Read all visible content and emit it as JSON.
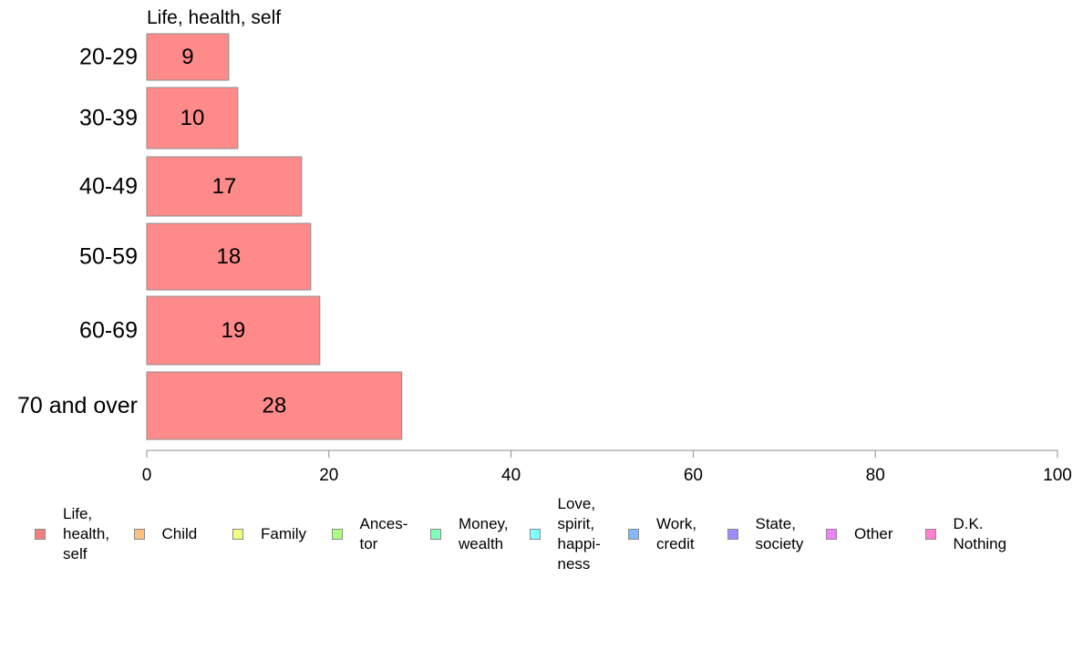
{
  "chart_data": {
    "type": "bar",
    "orientation": "horizontal",
    "title": "Life, health, self",
    "categories": [
      "20-29",
      "30-39",
      "40-49",
      "50-59",
      "60-69",
      "70 and over"
    ],
    "series": [
      {
        "name": "Life, health, self",
        "values": [
          9,
          10,
          17,
          18,
          19,
          28
        ],
        "color": "#ff8a8a"
      }
    ],
    "xlim": [
      0,
      100
    ],
    "x_ticks": [
      "0",
      "20",
      "40",
      "60",
      "80",
      "100"
    ],
    "grid": false,
    "legend_position": "bottom"
  },
  "legend": [
    {
      "label": "Life,\nhealth,\nself",
      "color": "#f28080"
    },
    {
      "label": "Child",
      "color": "#ffc080"
    },
    {
      "label": "Family",
      "color": "#f0ff80"
    },
    {
      "label": "Ances-\ntor",
      "color": "#a8ff80"
    },
    {
      "label": "Money,\nwealth",
      "color": "#80ffb8"
    },
    {
      "label": "Love,\nspirit,\nhappi-\nness",
      "color": "#80ffff"
    },
    {
      "label": "Work,\ncredit",
      "color": "#80b8ff"
    },
    {
      "label": "State,\nsociety",
      "color": "#9b8cff"
    },
    {
      "label": "Other",
      "color": "#f080ff"
    },
    {
      "label": "D.K.\nNothing",
      "color": "#ff80d0"
    }
  ]
}
